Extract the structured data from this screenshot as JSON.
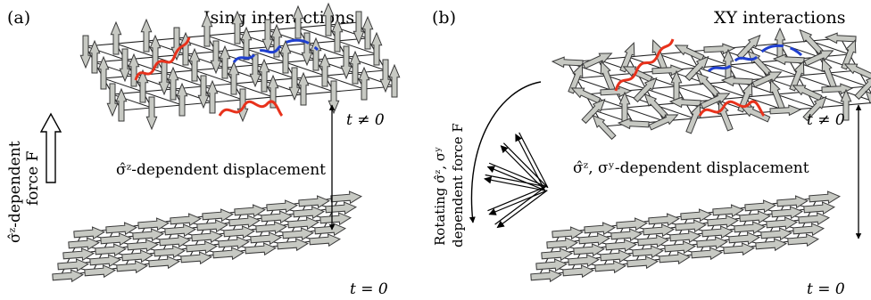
{
  "panels": [
    {
      "id": "a",
      "panel_label": "(a)",
      "title": "Ising interactions",
      "time_excited": "t ≠ 0",
      "time_initial": "t = 0",
      "displacement_label": "σ̂ᶻ-dependent displacement",
      "force_label_line1": "σ̂ᶻ-dependent",
      "force_label_line2": "force F"
    },
    {
      "id": "b",
      "panel_label": "(b)",
      "title": "XY interactions",
      "time_excited": "t ≠ 0",
      "time_initial": "t = 0",
      "displacement_label": "σ̂ᶻ, σʸ-dependent displacement",
      "force_label_line1": "Rotating σ̂ᶻ, σʸ",
      "force_label_line2": "dependent force F"
    }
  ],
  "colors": {
    "arrow_fill": "#c7c9c3",
    "arrow_stroke": "#3a3a3a",
    "lattice_line": "#222222",
    "interaction_red": "#e8321c",
    "interaction_blue": "#1f3fd0"
  }
}
